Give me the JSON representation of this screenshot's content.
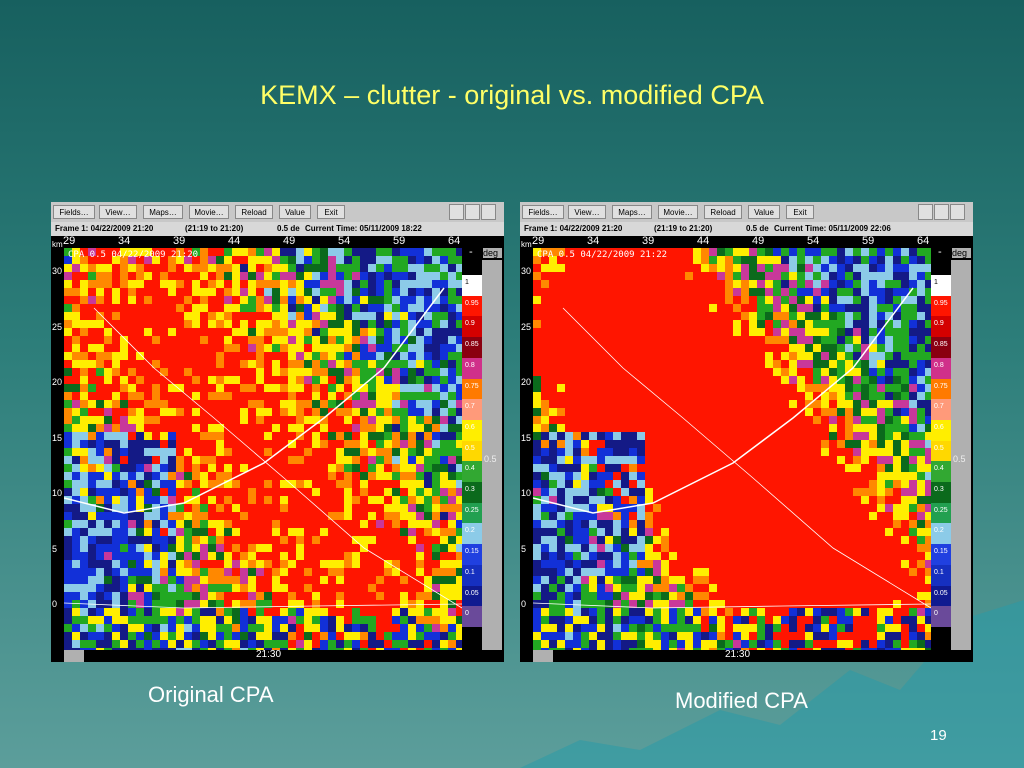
{
  "title": "KEMX – clutter - original vs. modified CPA",
  "panels": [
    {
      "buttons": [
        "Fields…",
        "View…",
        "Maps…",
        "Movie…",
        "Reload",
        "Value",
        "Exit"
      ],
      "frame": "Frame 1: 04/22/2009 21:20",
      "range": "(21:19 to 21:20)",
      "elevation": "0.5 de",
      "current": "Current Time: 05/11/2009 18:22",
      "unit": "km",
      "x_labels": [
        29,
        34,
        39,
        44,
        49,
        54,
        59,
        64
      ],
      "y_labels": [
        30,
        25,
        20,
        15,
        10,
        5,
        0
      ],
      "overlay": "CPA 0.5 04/22/2009 21:20",
      "colorbar_unit": "deg",
      "colorbar_labels": [
        1,
        0.95,
        0.9,
        0.85,
        0.8,
        0.75,
        0.7,
        0.6,
        0.5,
        0.4,
        0.3,
        0.25,
        0.2,
        0.15,
        0.1,
        0.05,
        0
      ],
      "marker": "-",
      "slider_label": "0.5",
      "time": "21:30",
      "caption": "Original CPA"
    },
    {
      "buttons": [
        "Fields…",
        "View…",
        "Maps…",
        "Movie…",
        "Reload",
        "Value",
        "Exit"
      ],
      "frame": "Frame 1: 04/22/2009 21:20",
      "range": "(21:19 to 21:20)",
      "elevation": "0.5 de",
      "current": "Current Time: 05/11/2009 22:06",
      "unit": "km",
      "x_labels": [
        29,
        34,
        39,
        44,
        49,
        54,
        59,
        64
      ],
      "y_labels": [
        30,
        25,
        20,
        15,
        10,
        5,
        0
      ],
      "overlay": "CPA 0.5 04/22/2009 21:22",
      "colorbar_unit": "deg",
      "colorbar_labels": [
        1,
        0.95,
        0.9,
        0.85,
        0.8,
        0.75,
        0.7,
        0.6,
        0.5,
        0.4,
        0.3,
        0.25,
        0.2,
        0.15,
        0.1,
        0.05,
        0
      ],
      "marker": "-",
      "slider_label": "0.5",
      "time": "21:30",
      "caption": "Modified CPA"
    }
  ],
  "page_number": "19"
}
